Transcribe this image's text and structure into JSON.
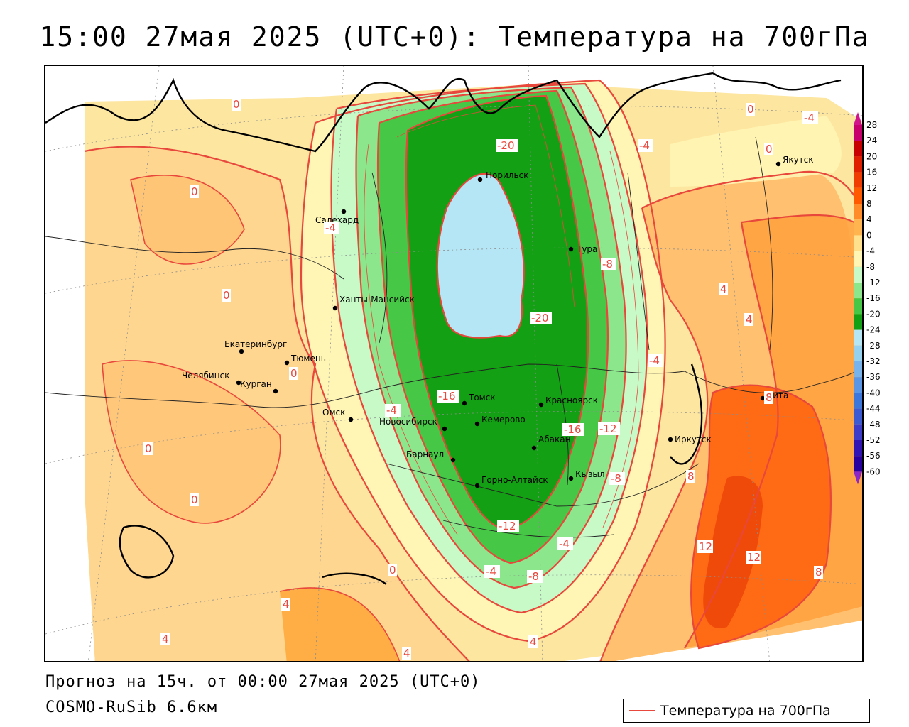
{
  "title": "15:00 27мая 2025 (UTC+0): Температура на 700гПа",
  "footer": {
    "forecast": "Прогноз на 15ч. от 00:00 27мая 2025 (UTC+0)",
    "model": "COSMO-RuSib 6.6км"
  },
  "legend": {
    "label": "Температура на 700гПа",
    "line_color": "#e8473c"
  },
  "colorbar": {
    "levels": [
      "28",
      "24",
      "20",
      "16",
      "12",
      "8",
      "4",
      "0",
      "-4",
      "-8",
      "-12",
      "-16",
      "-20",
      "-24",
      "-28",
      "-32",
      "-36",
      "-40",
      "-44",
      "-48",
      "-52",
      "-56",
      "-60"
    ],
    "colors": [
      "#c8006e",
      "#c80000",
      "#e01e00",
      "#f03c00",
      "#ff5a00",
      "#ff8c28",
      "#ffb450",
      "#ffe08c",
      "#fff5b4",
      "#c8fac8",
      "#8ce68c",
      "#46c846",
      "#14a014",
      "#b4e6f5",
      "#96d2f0",
      "#78b4eb",
      "#5a96e6",
      "#3c78dc",
      "#3c5ad2",
      "#3c3cc8",
      "#3214b4",
      "#2800a0",
      "#50148c"
    ],
    "top_arrow_color": "#d2148c",
    "bottom_arrow_color": "#8c28c8"
  },
  "cities": [
    {
      "name": "Норильск"
    },
    {
      "name": "Салехард"
    },
    {
      "name": "Тура"
    },
    {
      "name": "Ханты-Мансийск"
    },
    {
      "name": "Екатеринбург"
    },
    {
      "name": "Тюмень"
    },
    {
      "name": "Челябинск"
    },
    {
      "name": "Курган"
    },
    {
      "name": "Омск"
    },
    {
      "name": "Томск"
    },
    {
      "name": "Красноярск"
    },
    {
      "name": "Новосибирск"
    },
    {
      "name": "Кемерово"
    },
    {
      "name": "Абакан"
    },
    {
      "name": "Барнаул"
    },
    {
      "name": "Кызыл"
    },
    {
      "name": "Горно-Алтайск"
    },
    {
      "name": "Иркутск"
    },
    {
      "name": "Чита"
    },
    {
      "name": "Якутск"
    }
  ],
  "isotherm_labels": [
    "-20",
    "-20",
    "-16",
    "-16",
    "-12",
    "-12",
    "-8",
    "-8",
    "-8",
    "-4",
    "-4",
    "-4",
    "-4",
    "-4",
    "-4",
    "0",
    "0",
    "0",
    "0",
    "0",
    "0",
    "0",
    "0",
    "0",
    "4",
    "4",
    "4",
    "4",
    "4",
    "4",
    "8",
    "8",
    "8",
    "12",
    "12",
    "-4"
  ]
}
